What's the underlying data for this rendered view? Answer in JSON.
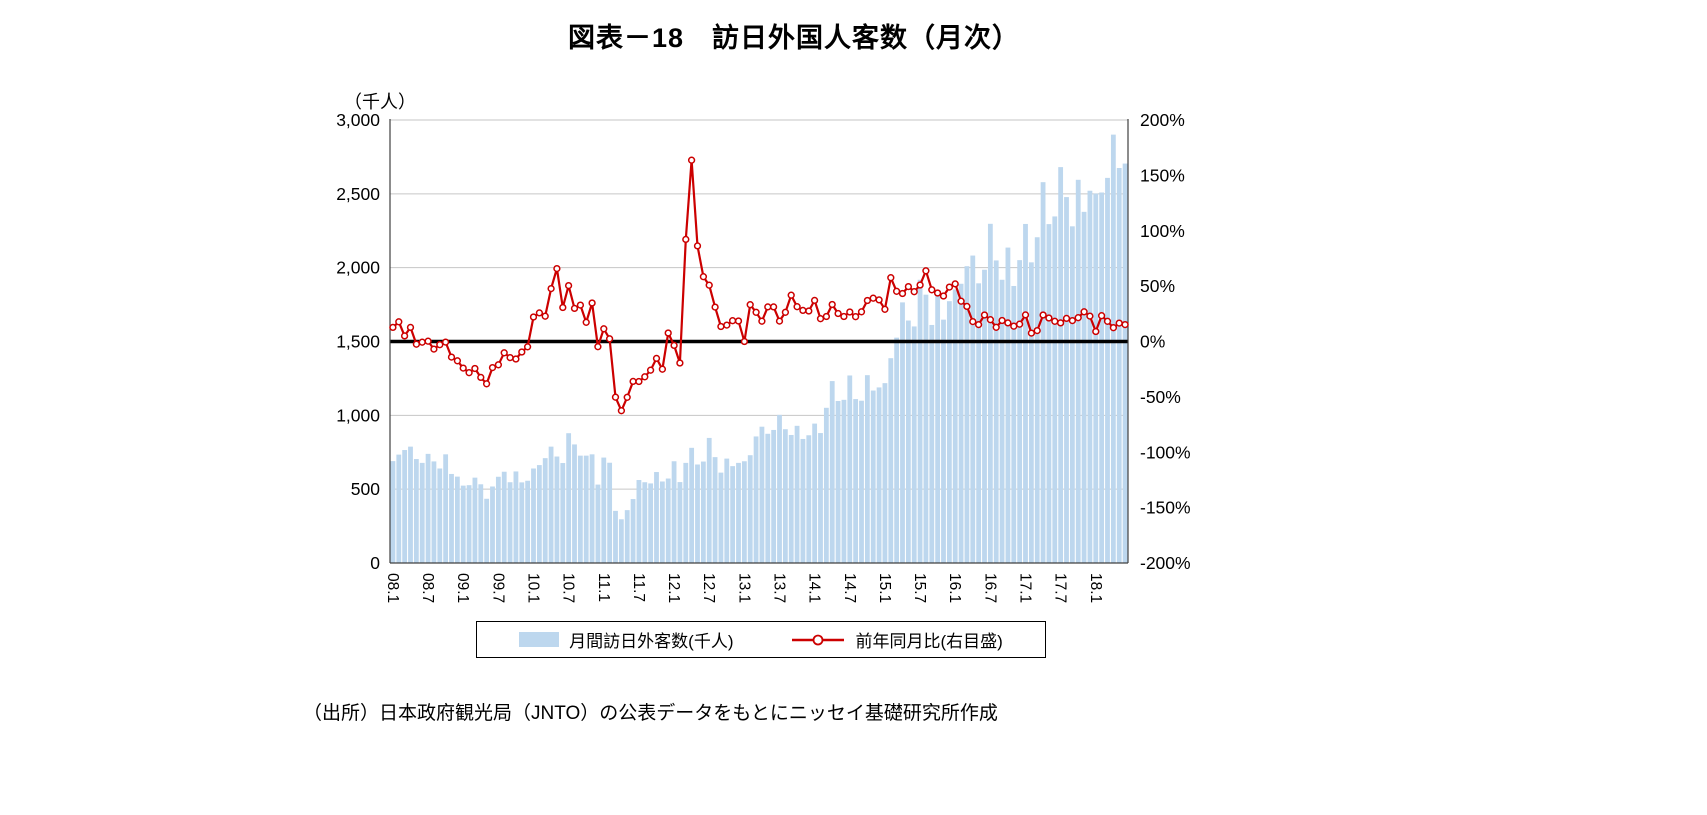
{
  "title": "図表－18　訪日外国人客数（月次）",
  "axis_unit_label": "（千人）",
  "legend": {
    "bars": "月間訪日外客数(千人)",
    "line": "前年同月比(右目盛)"
  },
  "source": "（出所）日本政府観光局（JNTO）の公表データをもとにニッセイ基礎研究所作成",
  "colors": {
    "bar": "#BDD7EE",
    "line": "#CC0000",
    "zero_line": "#000000",
    "grid": "#C6C6C6",
    "axis": "#404040"
  },
  "chart_data": {
    "type": "bar+line",
    "title": "図表－18　訪日外国人客数（月次）",
    "grid": true,
    "legend_position": "bottom",
    "x": [
      "08.1",
      "08.2",
      "08.3",
      "08.4",
      "08.5",
      "08.6",
      "08.7",
      "08.8",
      "08.9",
      "08.10",
      "08.11",
      "08.12",
      "09.1",
      "09.2",
      "09.3",
      "09.4",
      "09.5",
      "09.6",
      "09.7",
      "09.8",
      "09.9",
      "09.10",
      "09.11",
      "09.12",
      "10.1",
      "10.2",
      "10.3",
      "10.4",
      "10.5",
      "10.6",
      "10.7",
      "10.8",
      "10.9",
      "10.10",
      "10.11",
      "10.12",
      "11.1",
      "11.2",
      "11.3",
      "11.4",
      "11.5",
      "11.6",
      "11.7",
      "11.8",
      "11.9",
      "11.10",
      "11.11",
      "11.12",
      "12.1",
      "12.2",
      "12.3",
      "12.4",
      "12.5",
      "12.6",
      "12.7",
      "12.8",
      "12.9",
      "12.10",
      "12.11",
      "12.12",
      "13.1",
      "13.2",
      "13.3",
      "13.4",
      "13.5",
      "13.6",
      "13.7",
      "13.8",
      "13.9",
      "13.10",
      "13.11",
      "13.12",
      "14.1",
      "14.2",
      "14.3",
      "14.4",
      "14.5",
      "14.6",
      "14.7",
      "14.8",
      "14.9",
      "14.10",
      "14.11",
      "14.12",
      "15.1",
      "15.2",
      "15.3",
      "15.4",
      "15.5",
      "15.6",
      "15.7",
      "15.8",
      "15.9",
      "15.10",
      "15.11",
      "15.12",
      "16.1",
      "16.2",
      "16.3",
      "16.4",
      "16.5",
      "16.6",
      "16.7",
      "16.8",
      "16.9",
      "16.10",
      "16.11",
      "16.12",
      "17.1",
      "17.2",
      "17.3",
      "17.4",
      "17.5",
      "17.6",
      "17.7",
      "17.8",
      "17.9",
      "17.10",
      "17.11",
      "17.12",
      "18.1",
      "18.2",
      "18.3",
      "18.4",
      "18.5",
      "18.6"
    ],
    "x_ticks": [
      "08.1",
      "08.7",
      "09.1",
      "09.7",
      "10.1",
      "10.7",
      "11.1",
      "11.7",
      "12.1",
      "12.7",
      "13.1",
      "13.7",
      "14.1",
      "14.7",
      "15.1",
      "15.7",
      "16.1",
      "16.7",
      "17.1",
      "17.7",
      "18.1"
    ],
    "series": [
      {
        "name": "月間訪日外客数(千人)",
        "type": "bar",
        "axis": "left",
        "values": [
          690,
          734,
          765,
          788,
          704,
          678,
          739,
          688,
          640,
          736,
          603,
          585,
          524,
          527,
          578,
          533,
          435,
          518,
          584,
          618,
          547,
          620,
          546,
          557,
          640,
          663,
          710,
          788,
          721,
          677,
          879,
          803,
          727,
          727,
          736,
          531,
          714,
          679,
          353,
          296,
          358,
          433,
          562,
          547,
          539,
          616,
          552,
          572,
          689,
          548,
          678,
          780,
          667,
          687,
          847,
          717,
          612,
          707,
          656,
          678,
          689,
          730,
          857,
          923,
          875,
          901,
          1003,
          906,
          867,
          929,
          840,
          865,
          944,
          880,
          1051,
          1232,
          1097,
          1105,
          1270,
          1110,
          1099,
          1272,
          1168,
          1189,
          1218,
          1387,
          1526,
          1765,
          1642,
          1602,
          1918,
          1817,
          1612,
          1829,
          1648,
          1773,
          1852,
          1891,
          2010,
          2082,
          1894,
          1986,
          2297,
          2049,
          1918,
          2136,
          1876,
          2051,
          2296,
          2036,
          2206,
          2579,
          2295,
          2347,
          2681,
          2478,
          2280,
          2595,
          2378,
          2521,
          2502,
          2509,
          2608,
          2901,
          2675,
          2705
        ]
      },
      {
        "name": "前年同月比(右目盛)",
        "type": "line",
        "axis": "right",
        "values": [
          12.7,
          17.8,
          5.1,
          12.7,
          -2.4,
          -0.6,
          0.3,
          -6.9,
          -2.9,
          -0.5,
          -14.1,
          -17.4,
          -24.0,
          -28.2,
          -24.4,
          -32.4,
          -38.2,
          -23.6,
          -21.0,
          -10.2,
          -14.5,
          -15.8,
          -9.5,
          -4.8,
          22.1,
          25.8,
          22.8,
          47.8,
          65.8,
          30.7,
          50.5,
          29.9,
          32.9,
          17.3,
          34.8,
          -4.7,
          11.5,
          2.4,
          -50.3,
          -62.5,
          -50.4,
          -36.0,
          -36.1,
          -31.9,
          -25.9,
          -15.3,
          -25.0,
          7.7,
          -3.5,
          -19.4,
          92.2,
          163.7,
          86.3,
          58.5,
          50.8,
          31.1,
          13.5,
          14.8,
          18.8,
          18.5,
          0.0,
          33.2,
          26.4,
          18.3,
          31.2,
          31.2,
          18.4,
          26.4,
          41.8,
          31.4,
          28.1,
          27.5,
          37.1,
          20.6,
          22.6,
          33.4,
          25.3,
          22.6,
          26.6,
          22.4,
          26.8,
          37.0,
          39.1,
          37.6,
          29.1,
          57.6,
          45.3,
          43.3,
          49.6,
          45.0,
          51.0,
          63.8,
          46.7,
          43.8,
          41.1,
          49.1,
          52.0,
          36.4,
          31.7,
          18.0,
          15.3,
          23.9,
          19.7,
          12.8,
          19.0,
          16.8,
          13.8,
          15.6,
          24.0,
          7.6,
          9.8,
          23.9,
          21.2,
          18.2,
          16.8,
          20.9,
          18.9,
          21.5,
          26.8,
          22.9,
          9.0,
          23.3,
          18.2,
          12.5,
          16.6,
          15.3
        ]
      }
    ],
    "left_axis": {
      "label": "（千人）",
      "min": 0,
      "max": 3000,
      "step": 500,
      "ticks": [
        "0",
        "500",
        "1,000",
        "1,500",
        "2,000",
        "2,500",
        "3,000"
      ]
    },
    "right_axis": {
      "min": -200,
      "max": 200,
      "step": 50,
      "ticks": [
        "-200%",
        "-150%",
        "-100%",
        "-50%",
        "0%",
        "50%",
        "100%",
        "150%",
        "200%"
      ]
    },
    "zero_reference_line": 0
  }
}
